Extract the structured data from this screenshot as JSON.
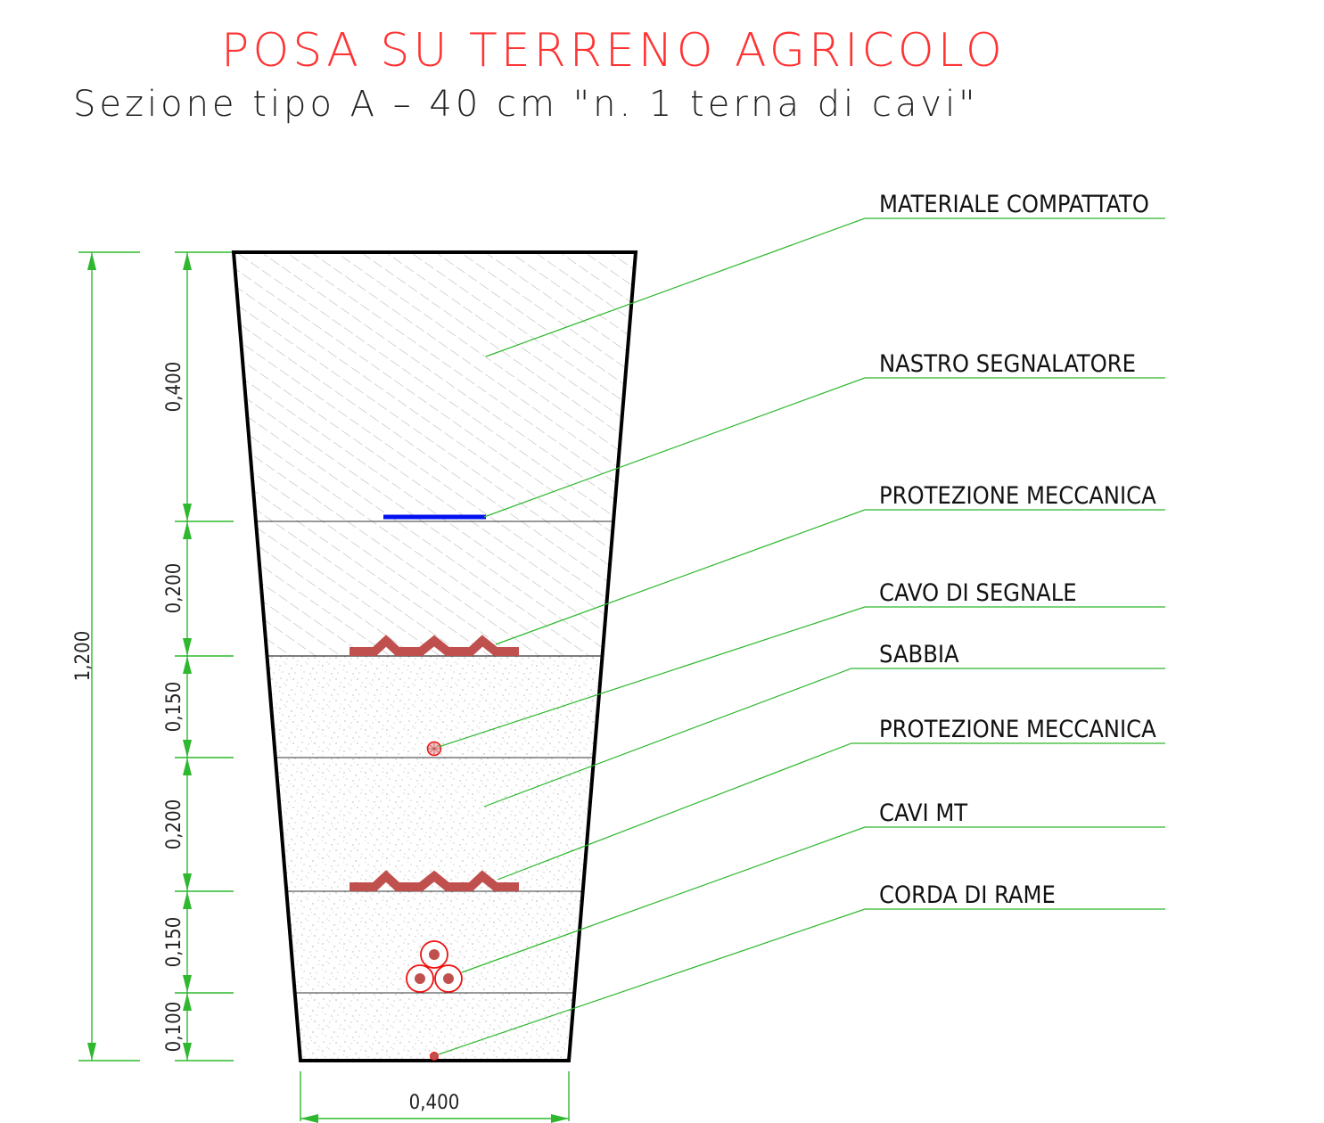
{
  "title": "POSA SU TERRENO AGRICOLO",
  "subtitle": "Sezione tipo A – 40 cm \"n. 1 terna di cavi\"",
  "dimensions": {
    "total_depth": "1,200",
    "width": "0,400",
    "layers": [
      "0,400",
      "0,200",
      "0,150",
      "0,200",
      "0,150",
      "0,100"
    ]
  },
  "labels": [
    "MATERIALE COMPATTATO",
    "NASTRO SEGNALATORE",
    "PROTEZIONE MECCANICA",
    "CAVO DI SEGNALE",
    "SABBIA",
    "PROTEZIONE MECCANICA",
    "CAVI MT",
    "CORDA DI RAME"
  ],
  "colors": {
    "title": "#ff3333",
    "dimension_lines": "#2db82d",
    "leader_lines": "#2db82d",
    "trench_outline": "#000000",
    "warning_tape": "#0011ee",
    "protection": "#c0504d",
    "cables": "#ee1111"
  }
}
